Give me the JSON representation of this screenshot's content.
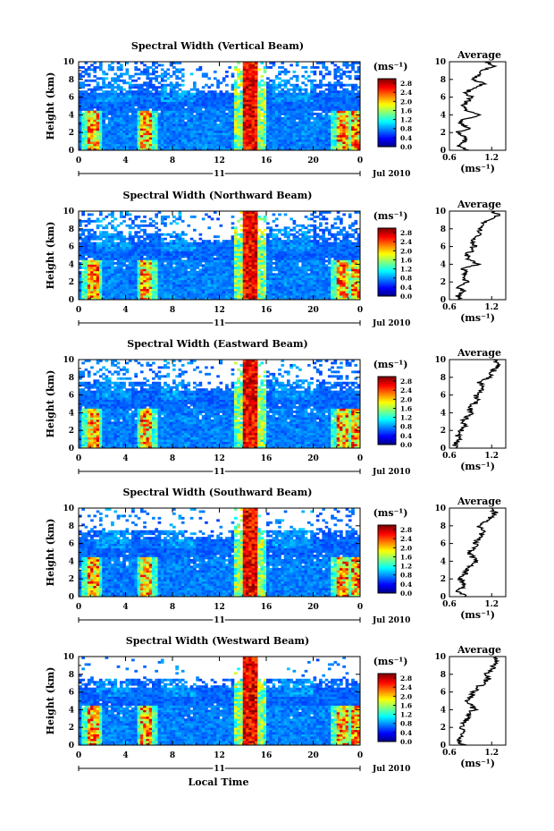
{
  "figure": {
    "xlabel": "Local Time"
  },
  "chart_data": [
    {
      "type": "heatmap",
      "title": "Spectral Width (Vertical Beam)",
      "ylabel": "Height (km)",
      "x_ticks": [
        "0",
        "4",
        "8",
        "12",
        "16",
        "20",
        "0"
      ],
      "y_ticks": [
        "0",
        "2",
        "4",
        "6",
        "8",
        "10"
      ],
      "xlim": [
        0,
        24
      ],
      "ylim": [
        0,
        10
      ],
      "date_center": "11",
      "date_right": "Jul 2010",
      "colorbar": {
        "unit": "(ms⁻¹)",
        "ticks": [
          "0.0",
          "0.4",
          "0.8",
          "1.2",
          "1.6",
          "2.0",
          "2.4",
          "2.8"
        ],
        "range": [
          0,
          3.0
        ]
      },
      "profile": {
        "title": "Average",
        "x_ticks": [
          "0.6",
          "1.2"
        ],
        "xlim": [
          0.6,
          1.4
        ],
        "xlabel": "(ms⁻¹)",
        "heights": [
          0,
          0.5,
          1,
          1.5,
          2,
          2.5,
          3,
          3.5,
          4,
          4.5,
          5,
          5.5,
          6,
          6.5,
          7,
          7.5,
          8,
          8.5,
          9,
          9.5,
          10
        ],
        "values": [
          0.9,
          0.7,
          0.8,
          0.85,
          0.7,
          0.9,
          0.75,
          0.8,
          1.05,
          0.85,
          0.78,
          0.85,
          0.92,
          0.82,
          0.95,
          1.08,
          0.95,
          1.02,
          1.05,
          1.22,
          1.15
        ]
      },
      "features": {
        "vertical_high_bands_hours": [
          1.2,
          5.8,
          14.5,
          22.5,
          23.8
        ],
        "peak_band_hours": [
          14.0,
          15.3
        ]
      }
    },
    {
      "type": "heatmap",
      "title": "Spectral Width (Northward Beam)",
      "ylabel": "Height (km)",
      "x_ticks": [
        "0",
        "4",
        "8",
        "12",
        "16",
        "20",
        "0"
      ],
      "y_ticks": [
        "0",
        "2",
        "4",
        "6",
        "8",
        "10"
      ],
      "xlim": [
        0,
        24
      ],
      "ylim": [
        0,
        10
      ],
      "date_center": "11",
      "date_right": "Jul 2010",
      "colorbar": {
        "unit": "(ms⁻¹)",
        "ticks": [
          "0.0",
          "0.4",
          "0.8",
          "1.2",
          "1.6",
          "2.0",
          "2.4",
          "2.8"
        ],
        "range": [
          0,
          3.0
        ]
      },
      "profile": {
        "title": "Average",
        "x_ticks": [
          "0.6",
          "1.2"
        ],
        "xlim": [
          0.6,
          1.4
        ],
        "xlabel": "(ms⁻¹)",
        "heights": [
          0,
          0.5,
          1,
          1.5,
          2,
          2.5,
          3,
          3.5,
          4,
          4.5,
          5,
          5.5,
          6,
          6.5,
          7,
          7.5,
          8,
          8.5,
          9,
          9.5,
          10
        ],
        "values": [
          0.75,
          0.72,
          0.8,
          0.7,
          0.85,
          0.78,
          0.82,
          0.8,
          1.0,
          0.88,
          0.85,
          0.9,
          0.95,
          0.92,
          1.0,
          1.05,
          1.0,
          1.08,
          1.15,
          1.3,
          1.2
        ]
      },
      "features": {
        "vertical_high_bands_hours": [
          1.2,
          5.8,
          14.5,
          22.5,
          23.8
        ],
        "peak_band_hours": [
          14.0,
          15.3
        ]
      }
    },
    {
      "type": "heatmap",
      "title": "Spectral Width (Eastward Beam)",
      "ylabel": "Height (km)",
      "x_ticks": [
        "0",
        "4",
        "8",
        "12",
        "16",
        "20",
        "0"
      ],
      "y_ticks": [
        "0",
        "2",
        "4",
        "6",
        "8",
        "10"
      ],
      "xlim": [
        0,
        24
      ],
      "ylim": [
        0,
        10
      ],
      "date_center": "11",
      "date_right": "Jul 2010",
      "colorbar": {
        "unit": "(ms⁻¹)",
        "ticks": [
          "0.0",
          "0.4",
          "0.8",
          "1.2",
          "1.6",
          "2.0",
          "2.4",
          "2.8"
        ],
        "range": [
          0,
          3.0
        ]
      },
      "profile": {
        "title": "Average",
        "x_ticks": [
          "0.6",
          "1.2"
        ],
        "xlim": [
          0.6,
          1.4
        ],
        "xlabel": "(ms⁻¹)",
        "heights": [
          0,
          0.5,
          1,
          1.5,
          2,
          2.5,
          3,
          3.5,
          4,
          4.5,
          5,
          5.5,
          6,
          6.5,
          7,
          7.5,
          8,
          8.5,
          9,
          9.5,
          10
        ],
        "values": [
          0.72,
          0.68,
          0.75,
          0.72,
          0.78,
          0.82,
          0.78,
          0.85,
          0.92,
          0.88,
          0.95,
          1.0,
          0.98,
          1.05,
          1.08,
          1.02,
          1.15,
          1.2,
          1.25,
          1.3,
          1.22
        ]
      },
      "features": {
        "vertical_high_bands_hours": [
          1.2,
          5.8,
          14.5,
          22.5,
          23.8
        ],
        "peak_band_hours": [
          14.0,
          15.3
        ]
      }
    },
    {
      "type": "heatmap",
      "title": "Spectral Width (Southward Beam)",
      "ylabel": "Height (km)",
      "x_ticks": [
        "0",
        "4",
        "8",
        "12",
        "16",
        "20",
        "0"
      ],
      "y_ticks": [
        "0",
        "2",
        "4",
        "6",
        "8",
        "10"
      ],
      "xlim": [
        0,
        24
      ],
      "ylim": [
        0,
        10
      ],
      "date_center": "11",
      "date_right": "Jul 2010",
      "colorbar": {
        "unit": "(ms⁻¹)",
        "ticks": [
          "0.0",
          "0.4",
          "0.8",
          "1.2",
          "1.6",
          "2.0",
          "2.4",
          "2.8"
        ],
        "range": [
          0,
          3.0
        ]
      },
      "profile": {
        "title": "Average",
        "x_ticks": [
          "0.6",
          "1.2"
        ],
        "xlim": [
          0.6,
          1.4
        ],
        "xlabel": "(ms⁻¹)",
        "heights": [
          0,
          0.5,
          1,
          1.5,
          2,
          2.5,
          3,
          3.5,
          4,
          4.5,
          5,
          5.5,
          6,
          6.5,
          7,
          7.5,
          8,
          8.5,
          9,
          9.5,
          10
        ],
        "values": [
          0.85,
          0.72,
          0.78,
          0.8,
          0.75,
          0.82,
          0.85,
          0.9,
          1.0,
          0.92,
          0.88,
          0.95,
          0.98,
          1.0,
          1.05,
          1.1,
          1.0,
          1.12,
          1.18,
          1.25,
          1.2
        ]
      },
      "features": {
        "vertical_high_bands_hours": [
          1.2,
          5.8,
          14.5,
          22.5,
          23.8
        ],
        "peak_band_hours": [
          14.0,
          15.3
        ]
      }
    },
    {
      "type": "heatmap",
      "title": "Spectral Width (Westward Beam)",
      "ylabel": "Height (km)",
      "x_ticks": [
        "0",
        "4",
        "8",
        "12",
        "16",
        "20",
        "0"
      ],
      "y_ticks": [
        "0",
        "2",
        "4",
        "6",
        "8",
        "10"
      ],
      "xlim": [
        0,
        24
      ],
      "ylim": [
        0,
        10
      ],
      "date_center": "11",
      "date_right": "Jul 2010",
      "colorbar": {
        "unit": "(ms⁻¹)",
        "ticks": [
          "0.0",
          "0.4",
          "0.8",
          "1.2",
          "1.6",
          "2.0",
          "2.4",
          "2.8"
        ],
        "range": [
          0,
          3.0
        ]
      },
      "profile": {
        "title": "Average",
        "x_ticks": [
          "0.6",
          "1.2"
        ],
        "xlim": [
          0.6,
          1.4
        ],
        "xlabel": "(ms⁻¹)",
        "heights": [
          0,
          0.5,
          1,
          1.5,
          2,
          2.5,
          3,
          3.5,
          4,
          4.5,
          5,
          5.5,
          6,
          6.5,
          7,
          7.5,
          8,
          8.5,
          9,
          9.5,
          10
        ],
        "values": [
          0.8,
          0.72,
          0.75,
          0.82,
          0.78,
          0.8,
          0.85,
          0.88,
          0.95,
          0.9,
          0.85,
          0.92,
          0.95,
          1.0,
          1.08,
          1.15,
          1.1,
          1.2,
          1.22,
          1.3,
          1.25
        ]
      },
      "features": {
        "vertical_high_bands_hours": [
          1.2,
          5.8,
          14.5,
          22.5,
          23.8
        ],
        "peak_band_hours": [
          14.0,
          15.3
        ]
      }
    }
  ]
}
